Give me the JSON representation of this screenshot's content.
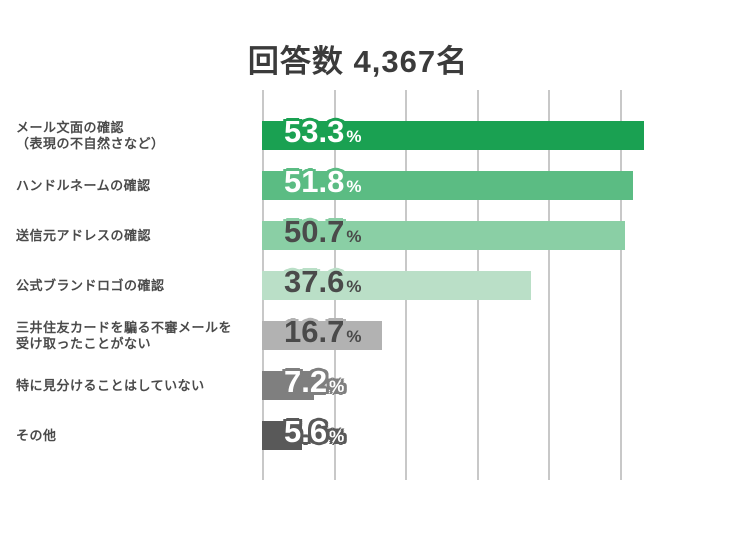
{
  "chart_data": {
    "type": "bar",
    "orientation": "horizontal",
    "title": "回答数 4,367名",
    "unit": "%",
    "categories": [
      [
        "メール文面の確認",
        "（表現の不自然さなど）"
      ],
      [
        "ハンドルネームの確認"
      ],
      [
        "送信元アドレスの確認"
      ],
      [
        "公式ブランドロゴの確認"
      ],
      [
        "三井住友カードを騙る不審メールを",
        "受け取ったことがない"
      ],
      [
        "特に見分けることはしていない"
      ],
      [
        "その他"
      ]
    ],
    "values": [
      53.3,
      51.8,
      50.7,
      37.6,
      16.7,
      7.2,
      5.6
    ],
    "value_labels": [
      "53.3%",
      "51.8%",
      "50.7%",
      "37.6%",
      "16.7%",
      "7.2%",
      "5.6%"
    ],
    "bar_colors": [
      "#1aa152",
      "#5bbc83",
      "#8acfa5",
      "#badfc7",
      "#b2b2b2",
      "#7f7f7f",
      "#595959"
    ],
    "value_text_colors": [
      "#ffffff",
      "#ffffff",
      "#4a4a4a",
      "#4a4a4a",
      "#4a4a4a",
      "#ffffff",
      "#ffffff"
    ],
    "label_text_color": "#4a4a4a",
    "title_color": "#3b3b3b",
    "background_color": "#ffffff",
    "axis": {
      "xlim": [
        0,
        60
      ],
      "gridline_values": [
        0,
        10,
        20,
        30,
        40,
        50
      ],
      "grid": true,
      "gridline_color": "#c8c8c8"
    },
    "legend_position": "none"
  }
}
